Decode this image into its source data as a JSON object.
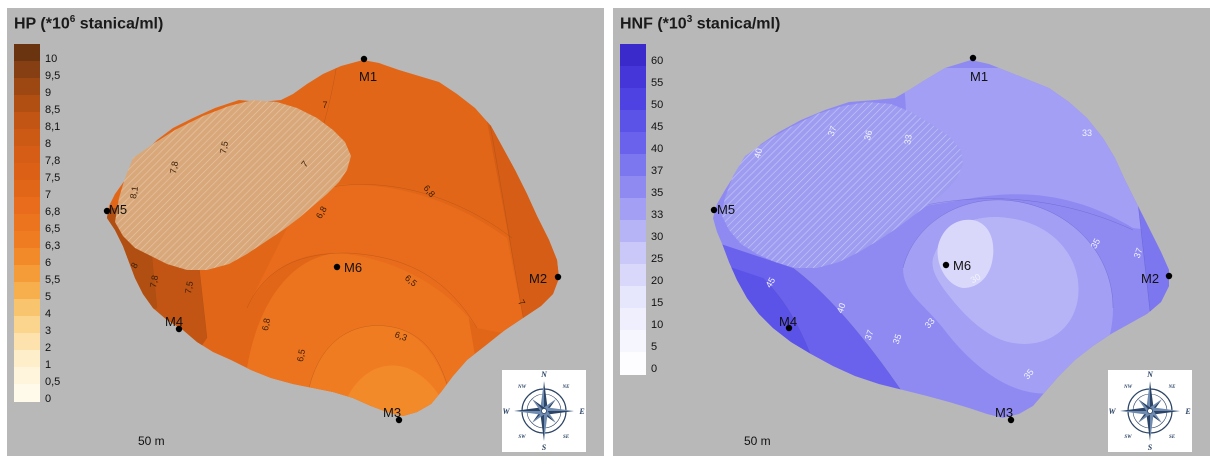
{
  "panels": [
    {
      "title_main": "HP (*10",
      "title_sup": "6",
      "title_rest": " stanica/ml)",
      "legend": [
        {
          "label": "10",
          "color": "#6b3410"
        },
        {
          "label": "9,5",
          "color": "#853f12"
        },
        {
          "label": "9",
          "color": "#9d4812"
        },
        {
          "label": "8,5",
          "color": "#b14f12"
        },
        {
          "label": "8,1",
          "color": "#c25513"
        },
        {
          "label": "8",
          "color": "#cc5914"
        },
        {
          "label": "7,8",
          "color": "#d55d15"
        },
        {
          "label": "7,5",
          "color": "#dc6116"
        },
        {
          "label": "7",
          "color": "#e26618"
        },
        {
          "label": "6,8",
          "color": "#e86c1b"
        },
        {
          "label": "6,5",
          "color": "#ed741e"
        },
        {
          "label": "6,3",
          "color": "#f07c22"
        },
        {
          "label": "6",
          "color": "#f38a2a"
        },
        {
          "label": "5,5",
          "color": "#f59b38"
        },
        {
          "label": "5",
          "color": "#f7ae4c"
        },
        {
          "label": "4",
          "color": "#f9c46e"
        },
        {
          "label": "3",
          "color": "#fbd48e"
        },
        {
          "label": "2",
          "color": "#fde2ad"
        },
        {
          "label": "1",
          "color": "#feeec9"
        },
        {
          "label": "0,5",
          "color": "#fff5dc"
        },
        {
          "label": "0",
          "color": "#fffaea"
        }
      ],
      "contour_labels": [
        "7",
        "7,5",
        "7,8",
        "8,1",
        "7",
        "6,8",
        "6,8",
        "8",
        "7,8",
        "7,5",
        "6,8",
        "6,5",
        "6,5",
        "6,3",
        "7"
      ],
      "scale_label": "50 m"
    },
    {
      "title_main": "HNF (*10",
      "title_sup": "3",
      "title_rest": " stanica/ml)",
      "legend": [
        {
          "label": "60",
          "color": "#3a2acc"
        },
        {
          "label": "55",
          "color": "#4436d8"
        },
        {
          "label": "50",
          "color": "#4e42e2"
        },
        {
          "label": "45",
          "color": "#5b52e8"
        },
        {
          "label": "40",
          "color": "#6a62ec"
        },
        {
          "label": "37",
          "color": "#7c76ef"
        },
        {
          "label": "35",
          "color": "#8f8af2"
        },
        {
          "label": "33",
          "color": "#a29ff4"
        },
        {
          "label": "30",
          "color": "#b6b4f6"
        },
        {
          "label": "25",
          "color": "#c9c8f8"
        },
        {
          "label": "20",
          "color": "#d9d8fa"
        },
        {
          "label": "15",
          "color": "#e6e6fc"
        },
        {
          "label": "10",
          "color": "#efeffd"
        },
        {
          "label": "5",
          "color": "#f6f6fe"
        },
        {
          "label": "0",
          "color": "#fdfdff"
        }
      ],
      "contour_labels": [
        "37",
        "36",
        "33",
        "40",
        "33",
        "35",
        "37",
        "45",
        "40",
        "37",
        "35",
        "33",
        "30",
        "35"
      ],
      "scale_label": "50 m"
    }
  ],
  "stations": [
    "M1",
    "M2",
    "M3",
    "M4",
    "M5",
    "M6"
  ],
  "compass": {
    "N": "N",
    "S": "S",
    "E": "E",
    "W": "W",
    "NE": "NE",
    "NW": "NW",
    "SE": "SE",
    "SW": "SW"
  }
}
